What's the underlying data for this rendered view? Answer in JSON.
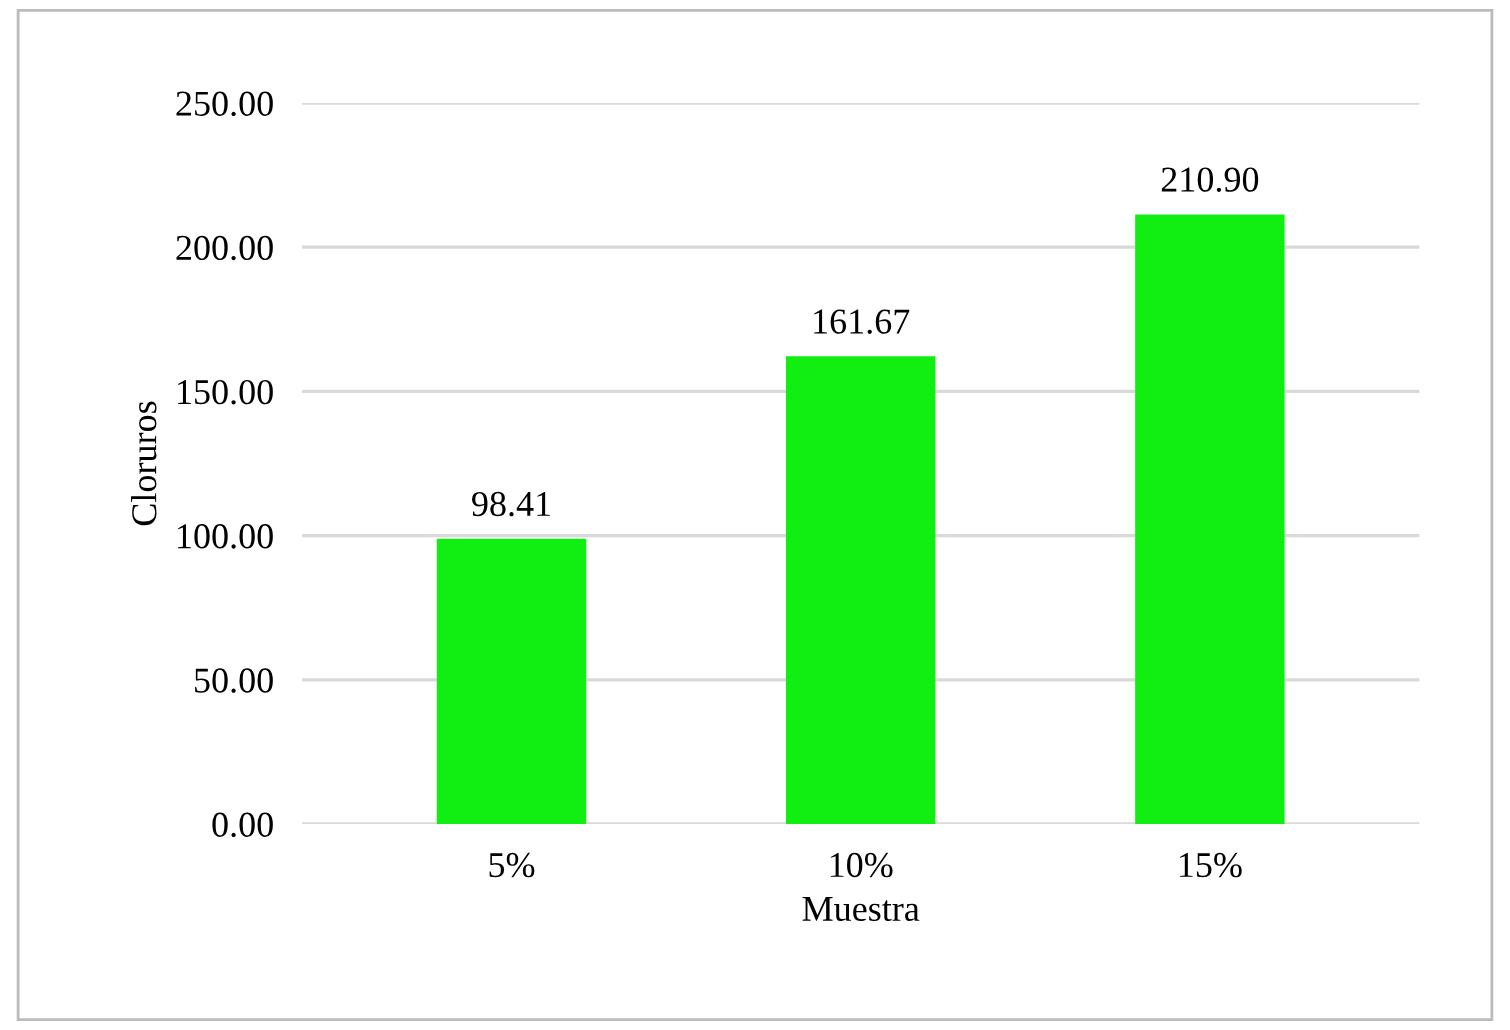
{
  "chart_data": {
    "type": "bar",
    "xlabel": "Muestra",
    "ylabel": "Cloruros",
    "categories": [
      "5%",
      "10%",
      "15%"
    ],
    "values": [
      98.41,
      161.67,
      210.9
    ],
    "value_labels": [
      "98.41",
      "161.67",
      "210.90"
    ],
    "color": "#11ee11",
    "ylim": [
      0,
      250
    ],
    "yticks": [
      {
        "value": 0,
        "label": "0.00"
      },
      {
        "value": 50,
        "label": "50.00"
      },
      {
        "value": 100,
        "label": "100.00"
      },
      {
        "value": 150,
        "label": "150.00"
      },
      {
        "value": 200,
        "label": "200.00"
      },
      {
        "value": 250,
        "label": "250.00"
      }
    ],
    "grid": "y",
    "legend": false
  }
}
